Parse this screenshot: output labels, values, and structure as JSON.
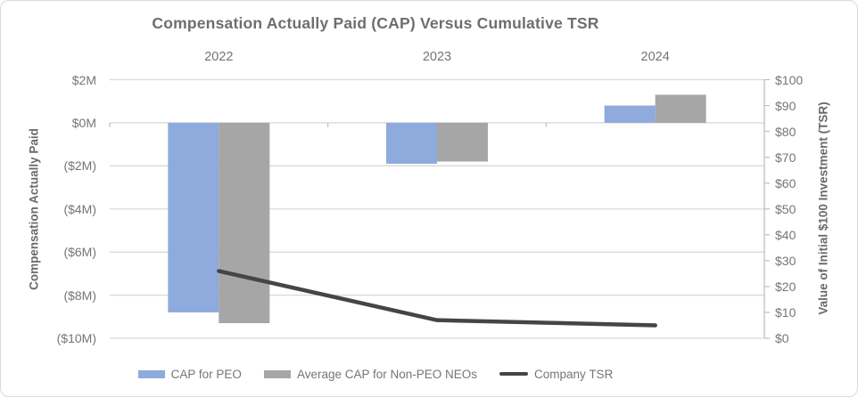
{
  "chart_data": {
    "type": "bar",
    "subtype": "combo-bar-line-dual-axis",
    "title": "Compensation Actually Paid (CAP) Versus Cumulative TSR",
    "categories": [
      "2022",
      "2023",
      "2024"
    ],
    "bar_series": [
      {
        "name": "CAP for PEO",
        "color": "#8FAADC",
        "axis": "left",
        "values_millions": [
          -8.8,
          -1.9,
          0.8
        ]
      },
      {
        "name": "Average CAP for Non-PEO NEOs",
        "color": "#A6A6A6",
        "axis": "left",
        "values_millions": [
          -9.3,
          -1.8,
          1.3
        ]
      }
    ],
    "line_series": {
      "name": "Company TSR",
      "color": "#454545",
      "axis": "right",
      "values_dollars": [
        26,
        7,
        5
      ]
    },
    "left_axis": {
      "title": "Compensation Actually Paid",
      "min": -10,
      "max": 2,
      "step": 2,
      "tick_labels": [
        "$2M",
        "$0M",
        "($2M)",
        "($4M)",
        "($6M)",
        "($8M)",
        "($10M)"
      ]
    },
    "right_axis": {
      "title": "Value of Initial $100 Investment (TSR)",
      "min": 0,
      "max": 100,
      "step": 10,
      "tick_labels": [
        "$100",
        "$90",
        "$80",
        "$70",
        "$60",
        "$50",
        "$40",
        "$30",
        "$20",
        "$10",
        "$0"
      ]
    },
    "legend_position": "bottom",
    "grid": true,
    "colors": {
      "gridline": "#D9D9D9",
      "axis_line": "#BFBFBF",
      "text": "#757575",
      "title_text": "#6E6E6E",
      "background": "#FFFFFF",
      "border": "#D9D9D9"
    }
  }
}
